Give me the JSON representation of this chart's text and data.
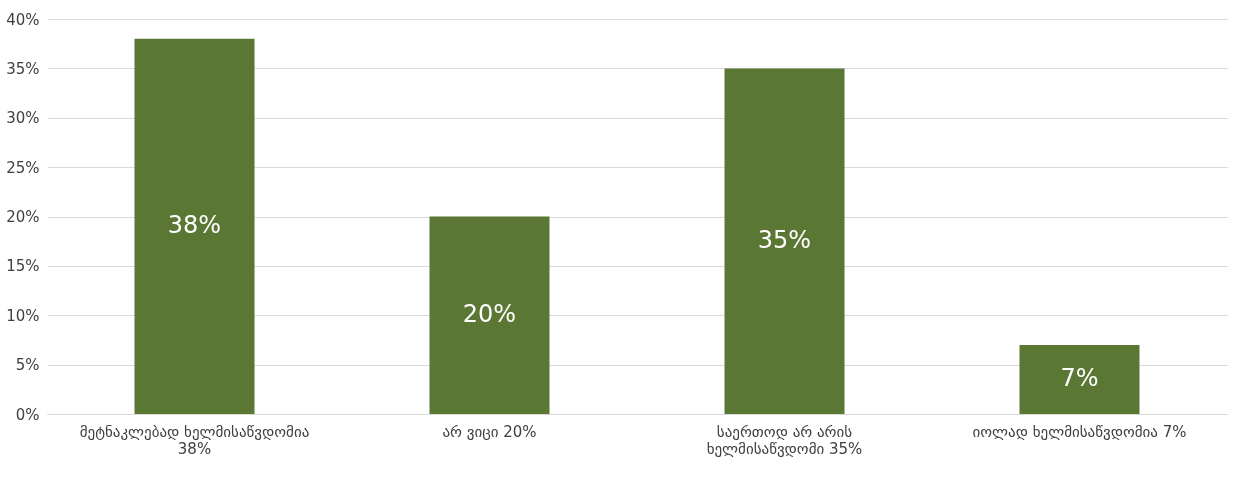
{
  "chart_data": {
    "type": "bar",
    "categories": [
      "მეტნაკლებად ხელმისაწვდომია 38%",
      "არ ვიცი 20%",
      "საერთოდ არ არის ხელმისაწვდომი 35%",
      "იოლად ხელმისაწვდომია 7%"
    ],
    "values": [
      38,
      20,
      35,
      7
    ],
    "value_labels": [
      "38%",
      "20%",
      "35%",
      "7%"
    ],
    "color": "#5b7734",
    "ylim": [
      0,
      40
    ],
    "yticks": [
      {
        "value": 0,
        "label": "0%"
      },
      {
        "value": 5,
        "label": "5%"
      },
      {
        "value": 10,
        "label": "10%"
      },
      {
        "value": 15,
        "label": "15%"
      },
      {
        "value": 20,
        "label": "20%"
      },
      {
        "value": 25,
        "label": "25%"
      },
      {
        "value": 30,
        "label": "30%"
      },
      {
        "value": 35,
        "label": "35%"
      },
      {
        "value": 40,
        "label": "40%"
      }
    ],
    "grid": "y"
  }
}
